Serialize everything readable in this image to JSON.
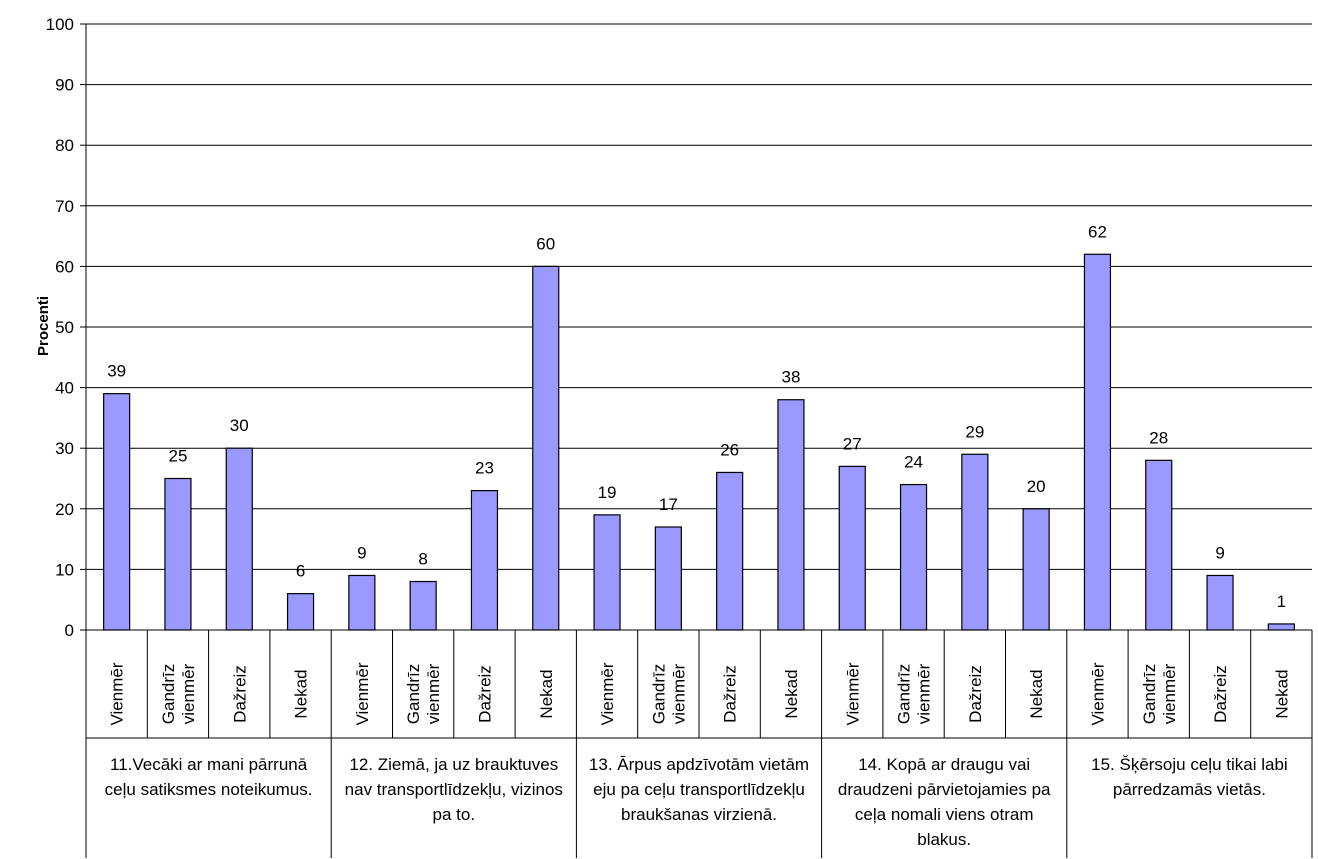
{
  "chart_data": {
    "type": "bar",
    "ylabel": "Procenti",
    "ylim": [
      0,
      100
    ],
    "yticks": [
      0,
      10,
      20,
      30,
      40,
      50,
      60,
      70,
      80,
      90,
      100
    ],
    "grid": true,
    "bar_color": "#9999ff",
    "groups": [
      {
        "label_lines": [
          "11.Vecāki ar mani pārrunā",
          "ceļu satiksmes noteikumus."
        ],
        "categories": [
          [
            "Vienmēr"
          ],
          [
            "Gandrīz",
            "vienmēr"
          ],
          [
            "Dažreiz"
          ],
          [
            "Nekad"
          ]
        ],
        "values": [
          39,
          25,
          30,
          6
        ]
      },
      {
        "label_lines": [
          "12. Ziemā, ja uz brauktuves",
          "nav transportlīdzekļu, vizinos",
          "pa to."
        ],
        "categories": [
          [
            "Vienmēr"
          ],
          [
            "Gandrīz",
            "vienmēr"
          ],
          [
            "Dažreiz"
          ],
          [
            "Nekad"
          ]
        ],
        "values": [
          9,
          8,
          23,
          60
        ]
      },
      {
        "label_lines": [
          "13. Ārpus apdzīvotām vietām",
          "eju pa ceļu transportlīdzekļu",
          "braukšanas virzienā."
        ],
        "categories": [
          [
            "Vienmēr"
          ],
          [
            "Gandrīz",
            "vienmēr"
          ],
          [
            "Dažreiz"
          ],
          [
            "Nekad"
          ]
        ],
        "values": [
          19,
          17,
          26,
          38
        ]
      },
      {
        "label_lines": [
          "14. Kopā ar draugu vai",
          "draudzeni pārvietojamies pa",
          "ceļa nomali viens otram",
          "blakus."
        ],
        "categories": [
          [
            "Vienmēr"
          ],
          [
            "Gandrīz",
            "vienmēr"
          ],
          [
            "Dažreiz"
          ],
          [
            "Nekad"
          ]
        ],
        "values": [
          27,
          24,
          29,
          20
        ]
      },
      {
        "label_lines": [
          "15. Šķērsoju ceļu tikai labi",
          "pārredzamās vietās."
        ],
        "categories": [
          [
            "Vienmēr"
          ],
          [
            "Gandrīz",
            "vienmēr"
          ],
          [
            "Dažreiz"
          ],
          [
            "Nekad"
          ]
        ],
        "values": [
          62,
          28,
          9,
          1
        ]
      }
    ]
  }
}
